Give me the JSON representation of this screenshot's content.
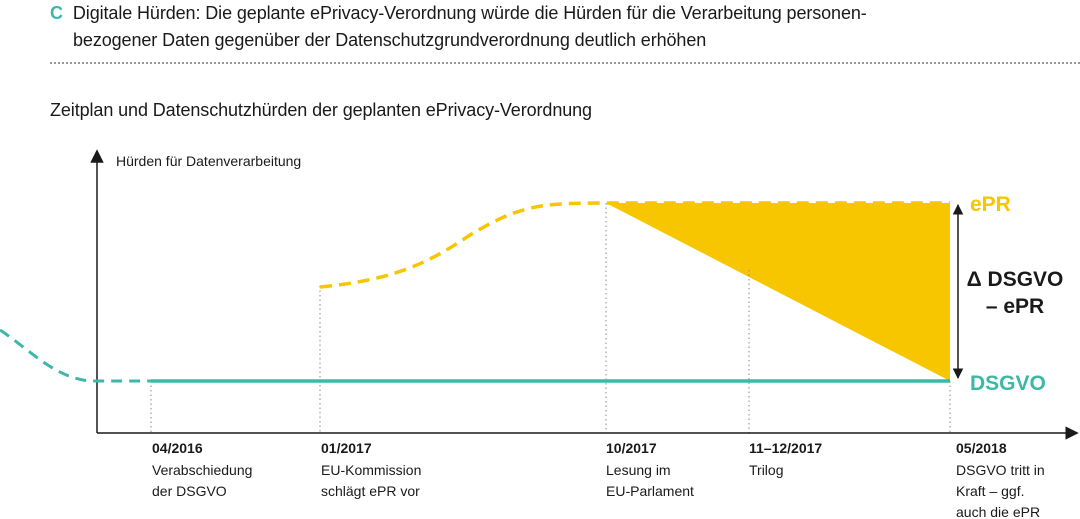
{
  "header": {
    "letter": "C",
    "line1": "Digitale Hürden: Die geplante ePrivacy-Verordnung würde die Hürden für die Verarbeitung personen-",
    "line2": "bezogener Daten gegenüber der Datenschutzgrundverordnung deutlich erhöhen"
  },
  "subtitle": "Zeitplan und Datenschutzhürden der geplanten ePrivacy-Verordnung",
  "y_axis_label": "Hürden für Datenverarbeitung",
  "series_labels": {
    "epr": "ePR",
    "dsgvo": "DSGVO",
    "delta_line1": "Δ DSGVO",
    "delta_line2": "– ePR"
  },
  "colors": {
    "epr": "#f7c600",
    "dsgvo": "#3db8a6",
    "text": "#1a1a1a"
  },
  "milestones": [
    {
      "date": "04/2016",
      "lines": [
        "Verabschiedung",
        "der DSGVO"
      ]
    },
    {
      "date": "01/2017",
      "lines": [
        "EU-Kommission",
        "schlägt ePR vor"
      ]
    },
    {
      "date": "10/2017",
      "lines": [
        "Lesung im",
        "EU-Parlament"
      ]
    },
    {
      "date": "11–12/2017",
      "lines": [
        "Trilog"
      ]
    },
    {
      "date": "05/2018",
      "lines": [
        "DSGVO tritt in",
        "Kraft – ggf.",
        "auch die ePR"
      ]
    }
  ]
}
